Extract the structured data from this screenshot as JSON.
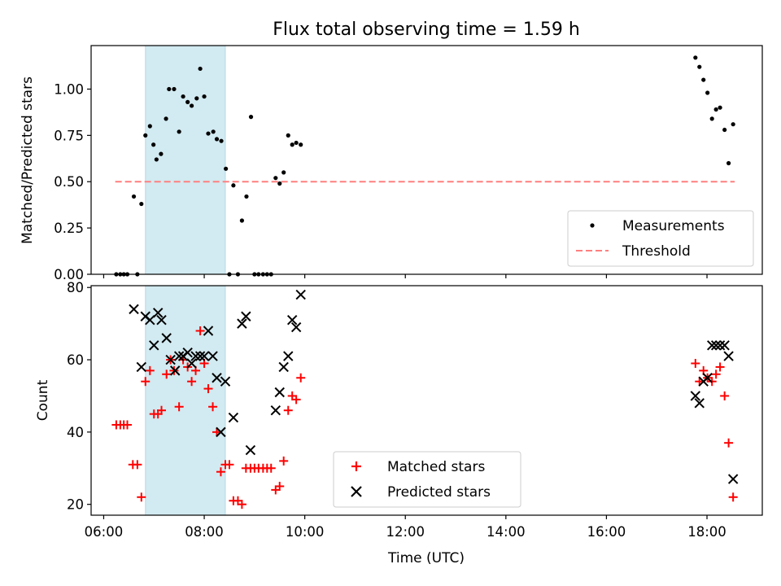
{
  "chart_data": [
    {
      "type": "scatter",
      "title": "Flux total observing time = 1.59 h",
      "ylabel": "Matched/Predicted stars",
      "xlabel": "",
      "ylim": [
        0,
        1.235
      ],
      "yticks": [
        "0.00",
        "0.25",
        "0.50",
        "0.75",
        "1.00"
      ],
      "highlight_span": {
        "x_start": 6.83,
        "x_end": 8.42,
        "color": "#add8e6"
      },
      "threshold": {
        "name": "Threshold",
        "value": 0.5,
        "x_start": 6.23,
        "x_end": 18.55,
        "color": "#ff7f7f"
      },
      "legend_position": "lower-right",
      "series": [
        {
          "name": "Measurements",
          "color": "#000000",
          "points": [
            [
              6.25,
              0.0
            ],
            [
              6.33,
              0.0
            ],
            [
              6.4,
              0.0
            ],
            [
              6.47,
              0.0
            ],
            [
              6.6,
              0.42
            ],
            [
              6.67,
              0.0
            ],
            [
              6.75,
              0.38
            ],
            [
              6.83,
              0.75
            ],
            [
              6.92,
              0.8
            ],
            [
              6.99,
              0.7
            ],
            [
              7.05,
              0.62
            ],
            [
              7.14,
              0.65
            ],
            [
              7.24,
              0.84
            ],
            [
              7.3,
              1.0
            ],
            [
              7.4,
              1.0
            ],
            [
              7.5,
              0.77
            ],
            [
              7.58,
              0.96
            ],
            [
              7.67,
              0.93
            ],
            [
              7.75,
              0.91
            ],
            [
              7.85,
              0.95
            ],
            [
              7.92,
              1.11
            ],
            [
              8.0,
              0.96
            ],
            [
              8.08,
              0.76
            ],
            [
              8.18,
              0.77
            ],
            [
              8.25,
              0.73
            ],
            [
              8.34,
              0.72
            ],
            [
              8.43,
              0.57
            ],
            [
              8.5,
              0.0
            ],
            [
              8.58,
              0.48
            ],
            [
              8.67,
              0.0
            ],
            [
              8.75,
              0.29
            ],
            [
              8.84,
              0.42
            ],
            [
              8.93,
              0.85
            ],
            [
              9.0,
              0.0
            ],
            [
              9.08,
              0.0
            ],
            [
              9.17,
              0.0
            ],
            [
              9.25,
              0.0
            ],
            [
              9.33,
              0.0
            ],
            [
              9.42,
              0.52
            ],
            [
              9.5,
              0.49
            ],
            [
              9.58,
              0.55
            ],
            [
              9.67,
              0.75
            ],
            [
              9.75,
              0.7
            ],
            [
              9.83,
              0.71
            ],
            [
              9.92,
              0.7
            ],
            [
              17.77,
              1.17
            ],
            [
              17.85,
              1.12
            ],
            [
              17.93,
              1.05
            ],
            [
              18.01,
              0.98
            ],
            [
              18.1,
              0.84
            ],
            [
              18.18,
              0.89
            ],
            [
              18.26,
              0.9
            ],
            [
              18.35,
              0.78
            ],
            [
              18.43,
              0.6
            ],
            [
              18.52,
              0.81
            ]
          ]
        }
      ]
    },
    {
      "type": "scatter",
      "title": "",
      "xlabel": "Time (UTC)",
      "ylabel": "Count",
      "ylim": [
        17,
        80.5
      ],
      "xlim": [
        5.75,
        19.1
      ],
      "yticks": [
        "20",
        "40",
        "60",
        "80"
      ],
      "xticks": [
        "06:00",
        "08:00",
        "10:00",
        "12:00",
        "14:00",
        "16:00",
        "18:00"
      ],
      "highlight_span": {
        "x_start": 6.83,
        "x_end": 8.42,
        "color": "#add8e6"
      },
      "legend_position": "lower-center",
      "series": [
        {
          "name": "Matched stars",
          "marker": "plus",
          "color": "#ff0000",
          "points": [
            [
              6.25,
              42
            ],
            [
              6.33,
              42
            ],
            [
              6.4,
              42
            ],
            [
              6.47,
              42
            ],
            [
              6.58,
              31
            ],
            [
              6.67,
              31
            ],
            [
              6.75,
              22
            ],
            [
              6.83,
              54
            ],
            [
              6.92,
              57
            ],
            [
              7.0,
              45
            ],
            [
              7.08,
              45
            ],
            [
              7.15,
              46
            ],
            [
              7.25,
              56
            ],
            [
              7.33,
              60
            ],
            [
              7.4,
              57
            ],
            [
              7.5,
              47
            ],
            [
              7.58,
              60
            ],
            [
              7.67,
              58
            ],
            [
              7.75,
              54
            ],
            [
              7.83,
              57
            ],
            [
              7.92,
              68
            ],
            [
              8.0,
              59
            ],
            [
              8.08,
              52
            ],
            [
              8.17,
              47
            ],
            [
              8.25,
              40
            ],
            [
              8.33,
              29
            ],
            [
              8.42,
              31
            ],
            [
              8.5,
              31
            ],
            [
              8.58,
              21
            ],
            [
              8.67,
              21
            ],
            [
              8.75,
              20
            ],
            [
              8.83,
              30
            ],
            [
              8.92,
              30
            ],
            [
              9.0,
              30
            ],
            [
              9.08,
              30
            ],
            [
              9.17,
              30
            ],
            [
              9.25,
              30
            ],
            [
              9.33,
              30
            ],
            [
              9.42,
              24
            ],
            [
              9.5,
              25
            ],
            [
              9.58,
              32
            ],
            [
              9.67,
              46
            ],
            [
              9.75,
              50
            ],
            [
              9.83,
              49
            ],
            [
              9.92,
              55
            ],
            [
              17.77,
              59
            ],
            [
              17.85,
              54
            ],
            [
              17.93,
              57
            ],
            [
              18.01,
              55
            ],
            [
              18.1,
              54
            ],
            [
              18.18,
              56
            ],
            [
              18.26,
              58
            ],
            [
              18.35,
              50
            ],
            [
              18.43,
              37
            ],
            [
              18.52,
              22
            ]
          ]
        },
        {
          "name": "Predicted stars",
          "marker": "x",
          "color": "#000000",
          "points": [
            [
              6.6,
              74
            ],
            [
              6.75,
              58
            ],
            [
              6.83,
              72
            ],
            [
              6.92,
              71
            ],
            [
              7.0,
              64
            ],
            [
              7.08,
              73
            ],
            [
              7.15,
              71
            ],
            [
              7.25,
              66
            ],
            [
              7.33,
              60
            ],
            [
              7.42,
              57
            ],
            [
              7.5,
              61
            ],
            [
              7.58,
              61
            ],
            [
              7.67,
              62
            ],
            [
              7.75,
              59
            ],
            [
              7.83,
              61
            ],
            [
              7.92,
              61
            ],
            [
              8.0,
              61
            ],
            [
              8.08,
              68
            ],
            [
              8.17,
              61
            ],
            [
              8.25,
              55
            ],
            [
              8.33,
              40
            ],
            [
              8.42,
              54
            ],
            [
              8.58,
              44
            ],
            [
              8.75,
              70
            ],
            [
              8.83,
              72
            ],
            [
              8.92,
              35
            ],
            [
              9.42,
              46
            ],
            [
              9.5,
              51
            ],
            [
              9.58,
              58
            ],
            [
              9.67,
              61
            ],
            [
              9.75,
              71
            ],
            [
              9.83,
              69
            ],
            [
              9.92,
              78
            ],
            [
              17.77,
              50
            ],
            [
              17.85,
              48
            ],
            [
              17.93,
              54
            ],
            [
              18.01,
              55
            ],
            [
              18.1,
              64
            ],
            [
              18.18,
              64
            ],
            [
              18.26,
              64
            ],
            [
              18.35,
              64
            ],
            [
              18.43,
              61
            ],
            [
              18.52,
              27
            ]
          ]
        }
      ]
    }
  ]
}
